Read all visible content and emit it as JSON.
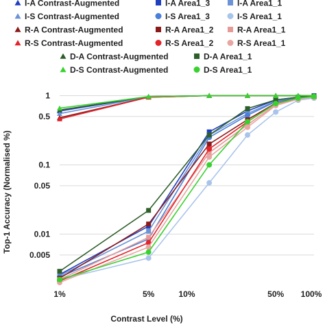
{
  "chart_data": {
    "type": "line",
    "xlabel": "Contrast Level (%)",
    "ylabel": "Top-1 Accuracy  (Normalised %)",
    "x_scale": "log",
    "y_scale": "log",
    "xlim": [
      1,
      100
    ],
    "ylim": [
      0.002,
      1.3
    ],
    "x_ticks": [
      1,
      5,
      10,
      50,
      100
    ],
    "x_tick_labels": [
      "1%",
      "5%",
      "10%",
      "50%",
      "100%"
    ],
    "y_ticks": [
      1,
      0.5,
      0.1,
      0.05,
      0.01,
      0.005
    ],
    "y_tick_labels": [
      "1",
      "0.5",
      "0.1",
      "0.05",
      "0.01",
      "0.005"
    ],
    "grid": "y-major",
    "legend_position": "top",
    "x": [
      1,
      5,
      15,
      30,
      50,
      75,
      100
    ],
    "series": [
      {
        "name": "I-A Contrast-Augmented",
        "color": "#1f3fbf",
        "marker": "triangle",
        "values": [
          0.6,
          0.97,
          1.0,
          1.0,
          1.0,
          1.0,
          1.0
        ]
      },
      {
        "name": "I-A Area1_3",
        "color": "#1f3fbf",
        "marker": "square",
        "values": [
          0.0026,
          0.013,
          0.3,
          0.6,
          0.87,
          0.95,
          1.0
        ]
      },
      {
        "name": "I-A Area1_1",
        "color": "#6b93d6",
        "marker": "square",
        "values": [
          0.0025,
          0.011,
          0.27,
          0.55,
          0.84,
          0.94,
          0.98
        ]
      },
      {
        "name": "I-S Contrast-Augmented",
        "color": "#6b93d6",
        "marker": "triangle",
        "values": [
          0.55,
          0.96,
          1.0,
          1.0,
          1.0,
          1.0,
          1.0
        ]
      },
      {
        "name": "I-S Area1_3",
        "color": "#4a7fd9",
        "marker": "circle",
        "values": [
          0.0024,
          0.0085,
          0.25,
          0.52,
          0.82,
          0.93,
          0.97
        ]
      },
      {
        "name": "I-S Area1_1",
        "color": "#a9c4eb",
        "marker": "circle",
        "values": [
          0.0022,
          0.0045,
          0.055,
          0.27,
          0.58,
          0.86,
          0.92
        ]
      },
      {
        "name": "R-A Contrast-Augmented",
        "color": "#8b1a1a",
        "marker": "triangle",
        "values": [
          0.48,
          0.95,
          1.0,
          1.0,
          1.0,
          1.0,
          1.0
        ]
      },
      {
        "name": "R-A Area1_2",
        "color": "#8b1a1a",
        "marker": "square",
        "values": [
          0.0023,
          0.014,
          0.2,
          0.45,
          0.78,
          0.92,
          0.97
        ]
      },
      {
        "name": "R-A Area1_1",
        "color": "#e59a96",
        "marker": "square",
        "values": [
          0.0022,
          0.009,
          0.15,
          0.38,
          0.74,
          0.9,
          0.96
        ]
      },
      {
        "name": "R-S Contrast-Augmented",
        "color": "#e3242b",
        "marker": "triangle",
        "values": [
          0.46,
          0.95,
          1.0,
          1.0,
          1.0,
          1.0,
          1.0
        ]
      },
      {
        "name": "R-S Area1_2",
        "color": "#e3242b",
        "marker": "circle",
        "values": [
          0.0021,
          0.0075,
          0.17,
          0.42,
          0.77,
          0.92,
          0.97
        ]
      },
      {
        "name": "R-S Area1_1",
        "color": "#e8a6a2",
        "marker": "circle",
        "values": [
          0.002,
          0.0065,
          0.13,
          0.35,
          0.72,
          0.89,
          0.95
        ]
      },
      {
        "name": "D-A Contrast-Augmented",
        "color": "#2e5e2a",
        "marker": "triangle",
        "values": [
          0.62,
          0.97,
          1.0,
          1.0,
          1.0,
          1.0,
          1.0
        ]
      },
      {
        "name": "D-A Area1_1",
        "color": "#2e5e2a",
        "marker": "square",
        "values": [
          0.0029,
          0.022,
          0.27,
          0.65,
          0.87,
          0.95,
          0.98
        ]
      },
      {
        "name": "D-S Contrast-Augmented",
        "color": "#39d130",
        "marker": "triangle",
        "values": [
          0.66,
          0.97,
          1.0,
          1.0,
          1.0,
          1.0,
          1.0
        ]
      },
      {
        "name": "D-S Area1_1",
        "color": "#39d130",
        "marker": "circle",
        "values": [
          0.0022,
          0.0055,
          0.1,
          0.42,
          0.77,
          0.92,
          0.97
        ]
      }
    ]
  },
  "legend": {
    "rows": [
      [
        "I-A Contrast-Augmented",
        "I-A Area1_3",
        "I-A Area1_1"
      ],
      [
        "I-S Contrast-Augmented",
        "I-S Area1_3",
        "I-S Area1_1"
      ],
      [
        "R-A Contrast-Augmented",
        "R-A Area1_2",
        "R-A Area1_1"
      ],
      [
        "R-S Contrast-Augmented",
        "R-S Area1_2",
        "R-S Area1_1"
      ],
      [
        "D-A Contrast-Augmented",
        "D-A Area1_1"
      ],
      [
        "D-S Contrast-Augmented",
        "D-S Area1_1"
      ]
    ]
  }
}
